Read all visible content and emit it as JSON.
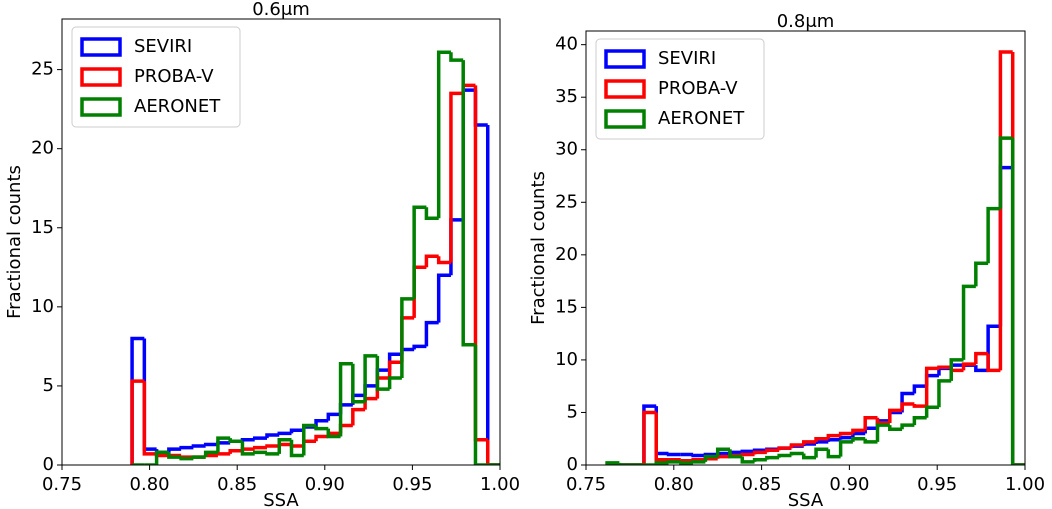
{
  "chart_data": [
    {
      "type": "histogram",
      "title": "0.6μm",
      "xlabel": "SSA",
      "ylabel": "Fractional counts",
      "xlim": [
        0.75,
        1.0
      ],
      "ylim": [
        0,
        28.2
      ],
      "xticks": [
        {
          "value": 0.75,
          "label": "0.75"
        },
        {
          "value": 0.8,
          "label": "0.80"
        },
        {
          "value": 0.85,
          "label": "0.85"
        },
        {
          "value": 0.9,
          "label": "0.90"
        },
        {
          "value": 0.95,
          "label": "0.95"
        },
        {
          "value": 1.0,
          "label": "1.00"
        }
      ],
      "yticks": [
        0,
        5,
        10,
        15,
        20,
        25
      ],
      "legend": "upper left",
      "bins": [
        0.79,
        0.797,
        0.804,
        0.811,
        0.818,
        0.825,
        0.832,
        0.839,
        0.846,
        0.853,
        0.86,
        0.867,
        0.874,
        0.881,
        0.888,
        0.895,
        0.902,
        0.909,
        0.916,
        0.923,
        0.93,
        0.937,
        0.944,
        0.951,
        0.958,
        0.965,
        0.972,
        0.979,
        0.986,
        0.993,
        1.0
      ],
      "series": [
        {
          "name": "SEVIRI",
          "color": "#0000ff",
          "values": [
            8.0,
            1.0,
            0.8,
            1.0,
            1.1,
            1.2,
            1.3,
            1.4,
            1.5,
            1.6,
            1.7,
            1.9,
            2.0,
            2.2,
            2.4,
            2.8,
            3.2,
            3.8,
            4.4,
            5.0,
            6.0,
            7.0,
            7.3,
            7.5,
            9.0,
            12.0,
            15.5,
            23.7,
            21.5,
            0
          ]
        },
        {
          "name": "PROBA-V",
          "color": "#ff0000",
          "values": [
            5.3,
            0.7,
            0.6,
            0.6,
            0.5,
            0.5,
            0.6,
            0.7,
            0.9,
            1.0,
            1.1,
            1.2,
            1.3,
            1.2,
            1.5,
            1.8,
            2.0,
            2.5,
            3.5,
            4.2,
            5.5,
            6.5,
            9.3,
            12.5,
            13.2,
            12.8,
            23.5,
            24.0,
            1.6,
            0
          ]
        },
        {
          "name": "AERONET",
          "color": "#008000",
          "values": [
            0,
            0,
            0.8,
            0.5,
            0.4,
            0.5,
            0.8,
            1.7,
            1.5,
            0.7,
            0.8,
            0.7,
            1.6,
            0.6,
            2.5,
            2.3,
            1.8,
            6.4,
            4.0,
            6.9,
            4.8,
            5.5,
            10.5,
            16.3,
            15.6,
            26.1,
            25.6,
            7.6,
            0,
            0
          ]
        }
      ]
    },
    {
      "type": "histogram",
      "title": "0.8μm",
      "xlabel": "SSA",
      "ylabel": "Fractional counts",
      "xlim": [
        0.75,
        1.0
      ],
      "ylim": [
        0,
        41.3
      ],
      "xticks": [
        {
          "value": 0.75,
          "label": "0.75"
        },
        {
          "value": 0.8,
          "label": "0.80"
        },
        {
          "value": 0.85,
          "label": "0.85"
        },
        {
          "value": 0.9,
          "label": "0.90"
        },
        {
          "value": 0.95,
          "label": "0.95"
        },
        {
          "value": 1.0,
          "label": "1.00"
        }
      ],
      "yticks": [
        0,
        5,
        10,
        15,
        20,
        25,
        30,
        35,
        40
      ],
      "legend": "upper left",
      "bins": [
        0.762,
        0.769,
        0.776,
        0.783,
        0.79,
        0.797,
        0.804,
        0.811,
        0.818,
        0.825,
        0.832,
        0.839,
        0.846,
        0.853,
        0.86,
        0.867,
        0.874,
        0.881,
        0.888,
        0.895,
        0.902,
        0.909,
        0.916,
        0.923,
        0.93,
        0.937,
        0.944,
        0.951,
        0.958,
        0.965,
        0.972,
        0.979,
        0.986,
        0.993,
        1.0
      ],
      "series": [
        {
          "name": "SEVIRI",
          "color": "#0000ff",
          "values": [
            0,
            0,
            0,
            5.6,
            1.1,
            1.0,
            1.0,
            0.9,
            1.0,
            1.1,
            1.2,
            1.3,
            1.4,
            1.5,
            1.6,
            1.8,
            2.0,
            2.2,
            2.4,
            2.6,
            3.0,
            3.5,
            4.2,
            5.0,
            6.8,
            7.5,
            8.5,
            9.2,
            9.5,
            9.5,
            9.0,
            13.2,
            28.3,
            0
          ]
        },
        {
          "name": "PROBA-V",
          "color": "#ff0000",
          "values": [
            0,
            0,
            0,
            5.0,
            0.5,
            0.5,
            0.4,
            0.5,
            0.6,
            0.8,
            0.9,
            1.0,
            1.2,
            1.4,
            1.6,
            1.9,
            2.2,
            2.5,
            2.8,
            3.0,
            3.3,
            4.5,
            4.0,
            5.2,
            5.8,
            5.6,
            9.2,
            9.3,
            9.0,
            9.6,
            10.6,
            9.0,
            39.3,
            0
          ]
        },
        {
          "name": "AERONET",
          "color": "#008000",
          "values": [
            0.2,
            0,
            0,
            0,
            0.2,
            0.3,
            0.2,
            0.3,
            0.8,
            1.5,
            0.8,
            0.3,
            0.5,
            0.7,
            0.9,
            1.1,
            0.7,
            1.5,
            0.8,
            2.2,
            2.5,
            2.2,
            3.8,
            3.4,
            3.8,
            4.5,
            5.5,
            8.0,
            10.0,
            17.0,
            19.2,
            24.4,
            31.1,
            0
          ]
        }
      ]
    }
  ]
}
